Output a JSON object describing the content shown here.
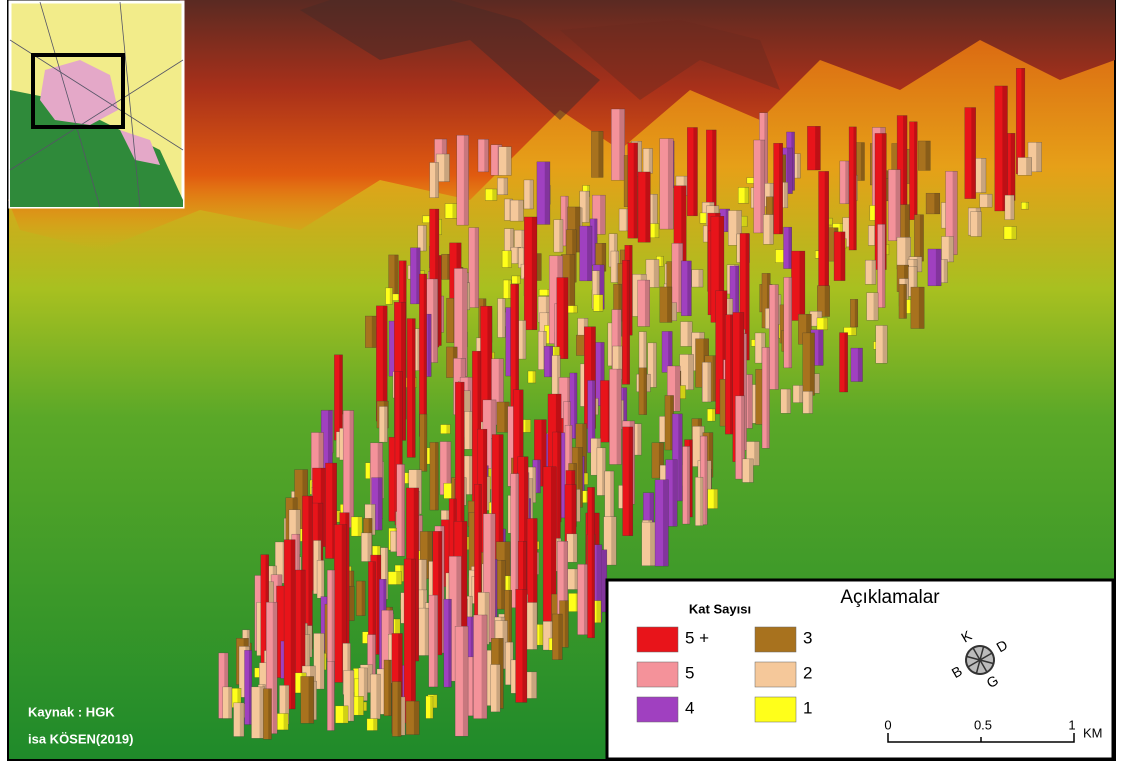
{
  "legend": {
    "title": "Açıklamalar",
    "subtitle": "Kat Sayısı",
    "items": [
      {
        "label": "5 +",
        "color": "#e8141a"
      },
      {
        "label": "5",
        "color": "#f4929a"
      },
      {
        "label": "4",
        "color": "#a040c0"
      },
      {
        "label": "3",
        "color": "#a8721e"
      },
      {
        "label": "2",
        "color": "#f5c89a"
      },
      {
        "label": "1",
        "color": "#ffff1a"
      }
    ]
  },
  "compass": {
    "north": "K",
    "east": "D",
    "south": "G",
    "west": "B"
  },
  "scale": {
    "labels": [
      "0",
      "0.5",
      "1"
    ],
    "unit": "KM"
  },
  "source": {
    "line1": "Kaynak : HGK",
    "line2": "isa KÖSEN(2019)"
  }
}
